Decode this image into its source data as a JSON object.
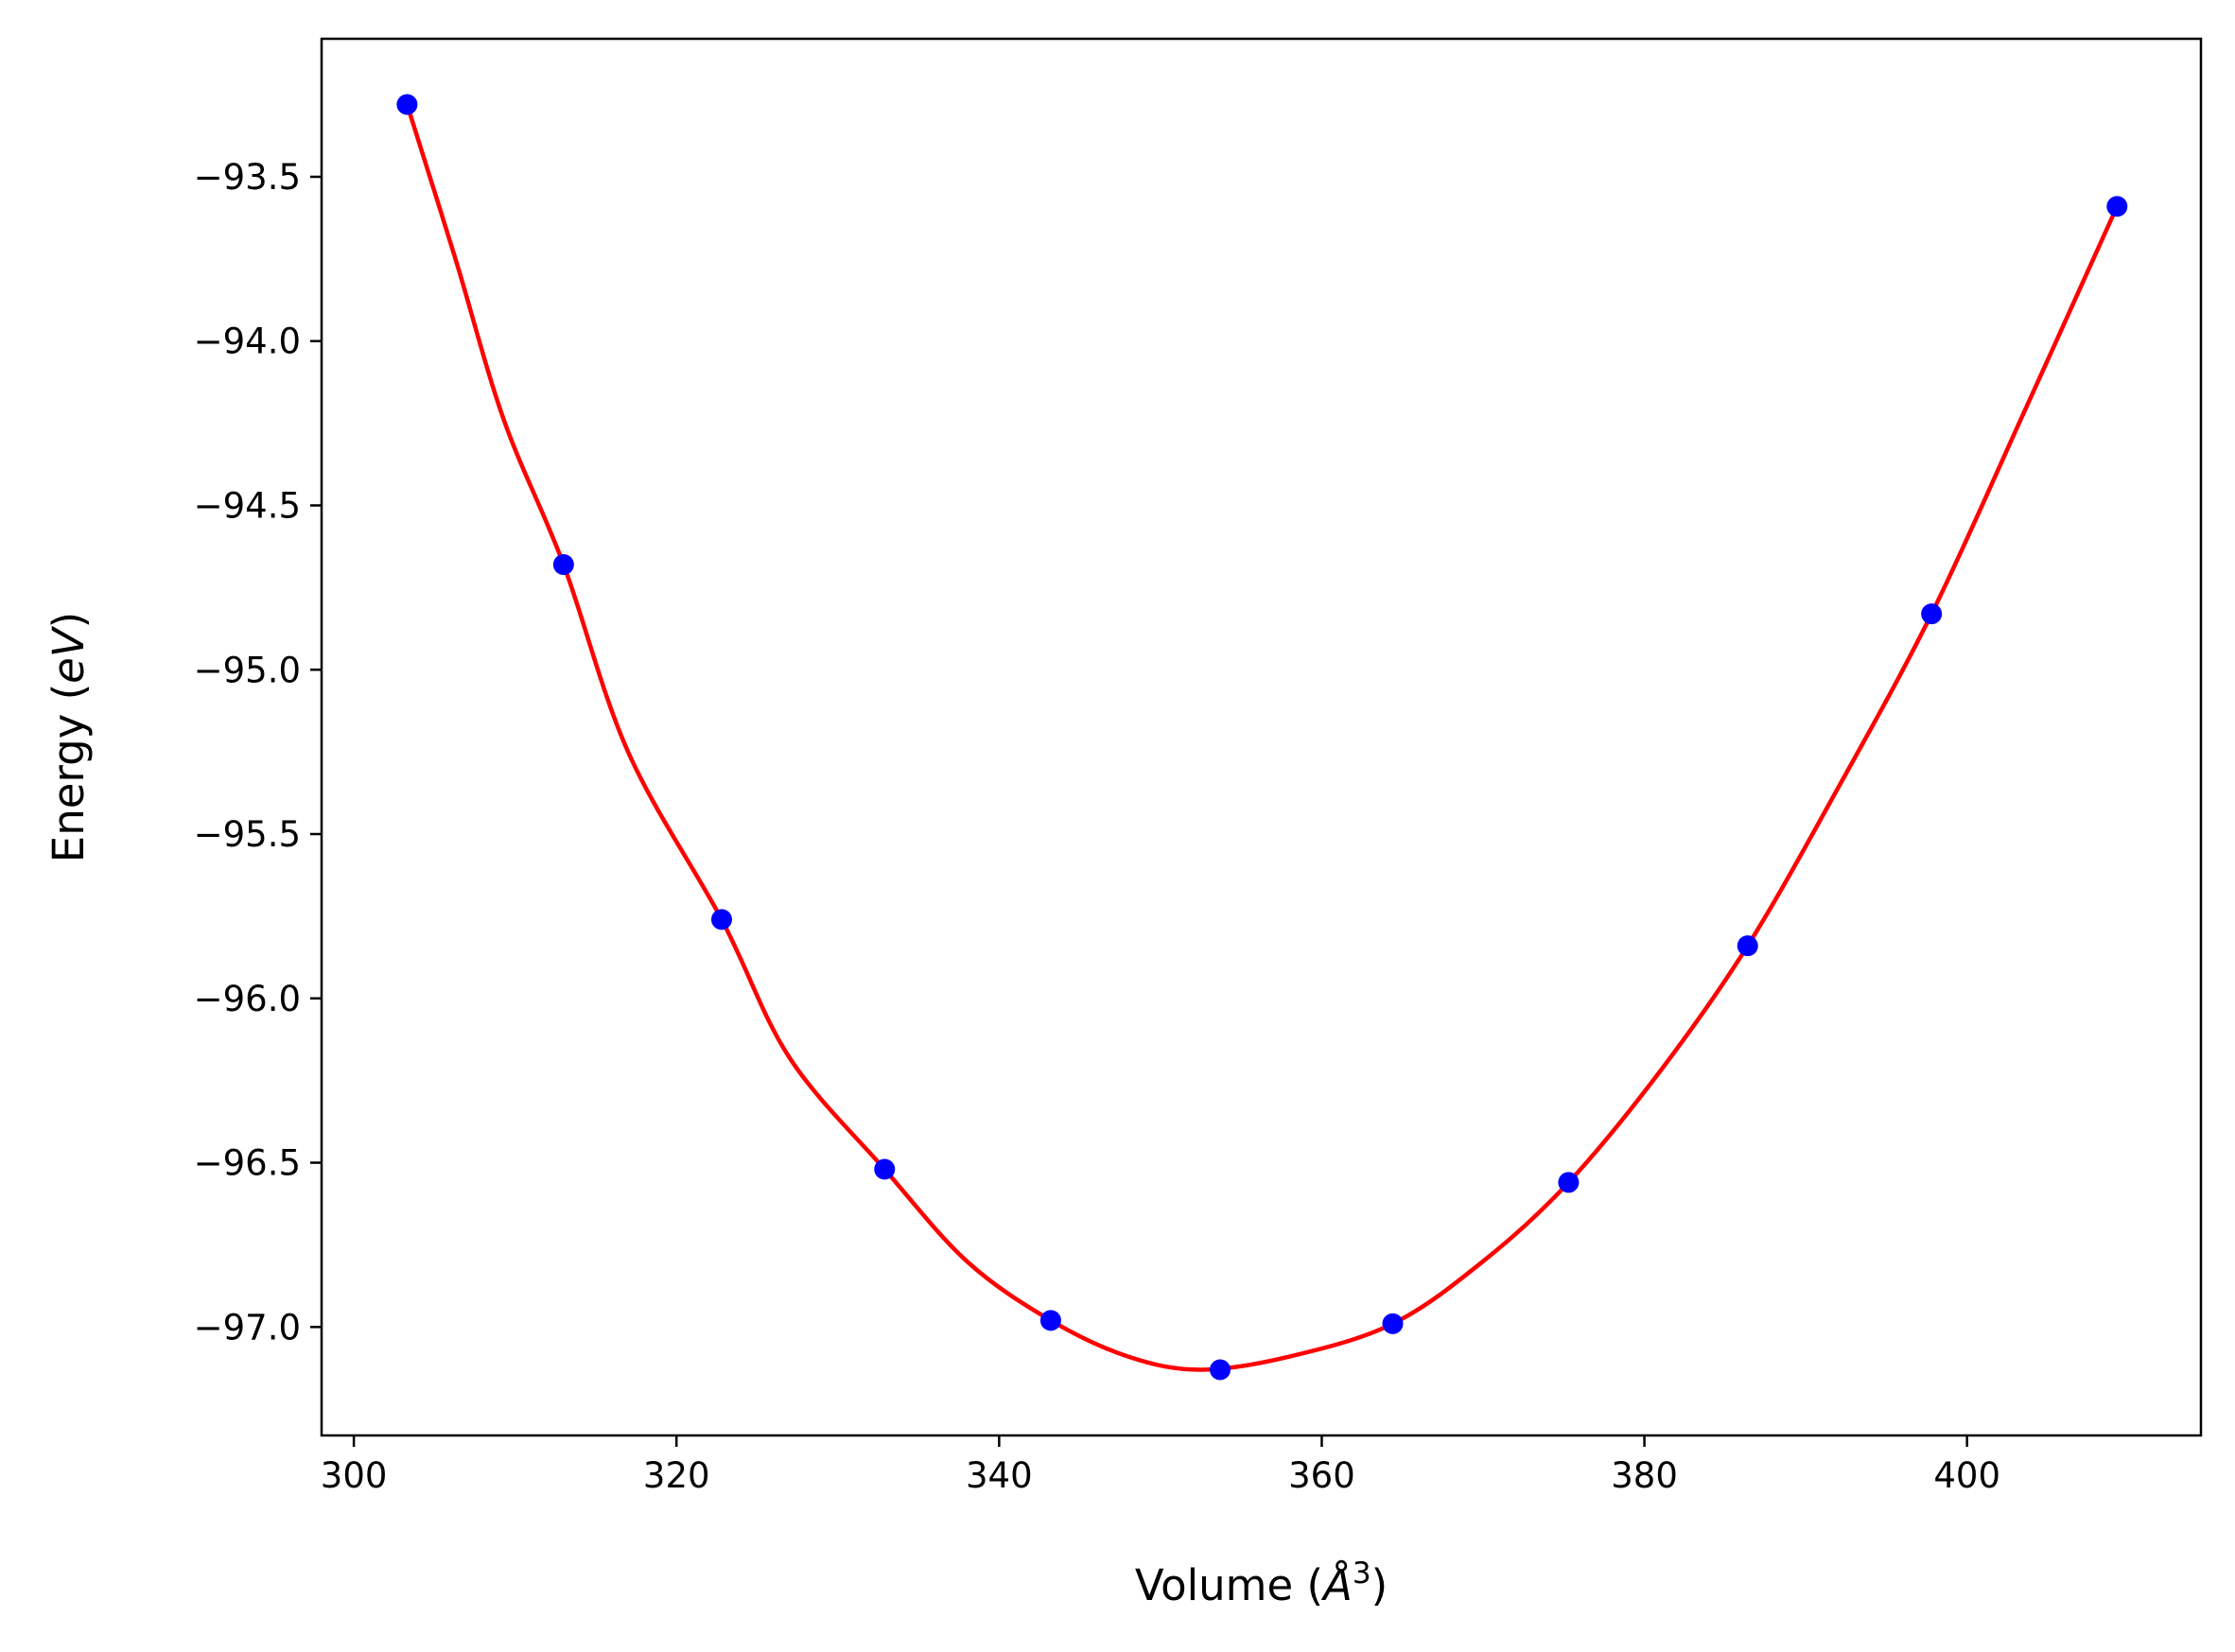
{
  "chart_data": {
    "type": "scatter",
    "title": "",
    "xlabel": {
      "prefix": "Volume (",
      "unit": "Å",
      "superscript": "3",
      "suffix": ")"
    },
    "ylabel": {
      "prefix": "Energy (",
      "unit": "eV",
      "suffix": ")"
    },
    "xlim": [
      298,
      414.5
    ],
    "ylim": [
      -97.33,
      -93.08
    ],
    "xticks": [
      {
        "value": 300,
        "label": "300"
      },
      {
        "value": 320,
        "label": "320"
      },
      {
        "value": 340,
        "label": "340"
      },
      {
        "value": 360,
        "label": "360"
      },
      {
        "value": 380,
        "label": "380"
      },
      {
        "value": 400,
        "label": "400"
      }
    ],
    "yticks": [
      {
        "value": -93.5,
        "label": "−93.5"
      },
      {
        "value": -94.0,
        "label": "−94.0"
      },
      {
        "value": -94.5,
        "label": "−94.5"
      },
      {
        "value": -95.0,
        "label": "−95.0"
      },
      {
        "value": -95.5,
        "label": "−95.5"
      },
      {
        "value": -96.0,
        "label": "−96.0"
      },
      {
        "value": -96.5,
        "label": "−96.5"
      },
      {
        "value": -97.0,
        "label": "−97.0"
      }
    ],
    "grid": false,
    "series": [
      {
        "kind": "points",
        "color": "#0000ff",
        "x": [
          303.3,
          313.0,
          322.8,
          332.9,
          343.2,
          353.7,
          364.4,
          375.3,
          386.4,
          397.8,
          409.3
        ],
        "y": [
          -93.28,
          -94.68,
          -95.76,
          -96.52,
          -96.98,
          -97.13,
          -96.99,
          -96.56,
          -95.84,
          -94.83,
          -93.59
        ]
      },
      {
        "kind": "fit",
        "color": "#ff0000",
        "x": [
          303.3,
          306.3,
          309.3,
          313.0,
          317.0,
          322.8,
          327.0,
          332.9,
          338.0,
          343.2,
          348.0,
          352.5,
          358.0,
          364.4,
          370.0,
          375.3,
          381.0,
          386.4,
          392.0,
          397.8,
          403.5,
          409.3
        ],
        "y": [
          -93.28,
          -93.75,
          -94.24,
          -94.68,
          -95.25,
          -95.76,
          -96.18,
          -96.52,
          -96.8,
          -96.98,
          -97.09,
          -97.13,
          -97.09,
          -96.99,
          -96.8,
          -96.56,
          -96.22,
          -95.84,
          -95.36,
          -94.83,
          -94.22,
          -93.59
        ]
      }
    ]
  }
}
